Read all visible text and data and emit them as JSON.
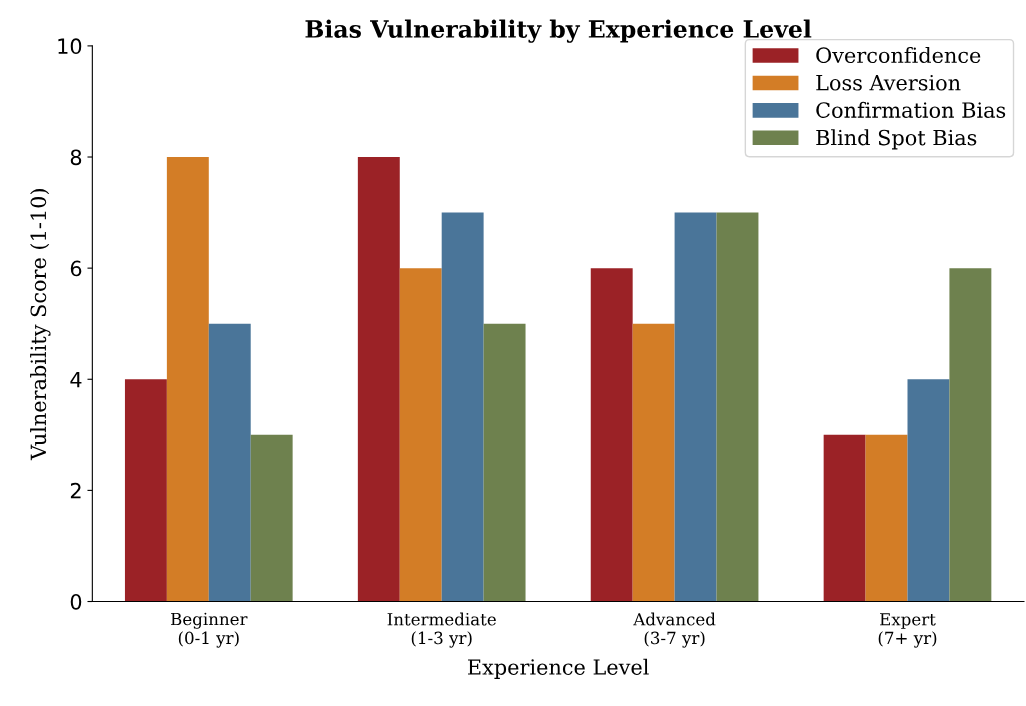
{
  "chart_data": {
    "type": "bar",
    "title": "Bias Vulnerability by Experience Level",
    "xlabel": "Experience Level",
    "ylabel": "Vulnerability Score (1-10)",
    "categories": [
      "Beginner\n(0-1 yr)",
      "Intermediate\n(1-3 yr)",
      "Advanced\n(3-7 yr)",
      "Expert\n(7+ yr)"
    ],
    "series": [
      {
        "name": "Overconfidence",
        "color": "#9b2226",
        "values": [
          4,
          8,
          6,
          3
        ]
      },
      {
        "name": "Loss Aversion",
        "color": "#d37d26",
        "values": [
          8,
          6,
          5,
          3
        ]
      },
      {
        "name": "Confirmation Bias",
        "color": "#4a7599",
        "values": [
          5,
          7,
          7,
          4
        ]
      },
      {
        "name": "Blind Spot Bias",
        "color": "#6e814e",
        "values": [
          3,
          5,
          7,
          6
        ]
      }
    ],
    "ylim": [
      0,
      10
    ],
    "yticks": [
      0,
      2,
      4,
      6,
      8,
      10
    ],
    "grid": false,
    "legend": "top right"
  }
}
